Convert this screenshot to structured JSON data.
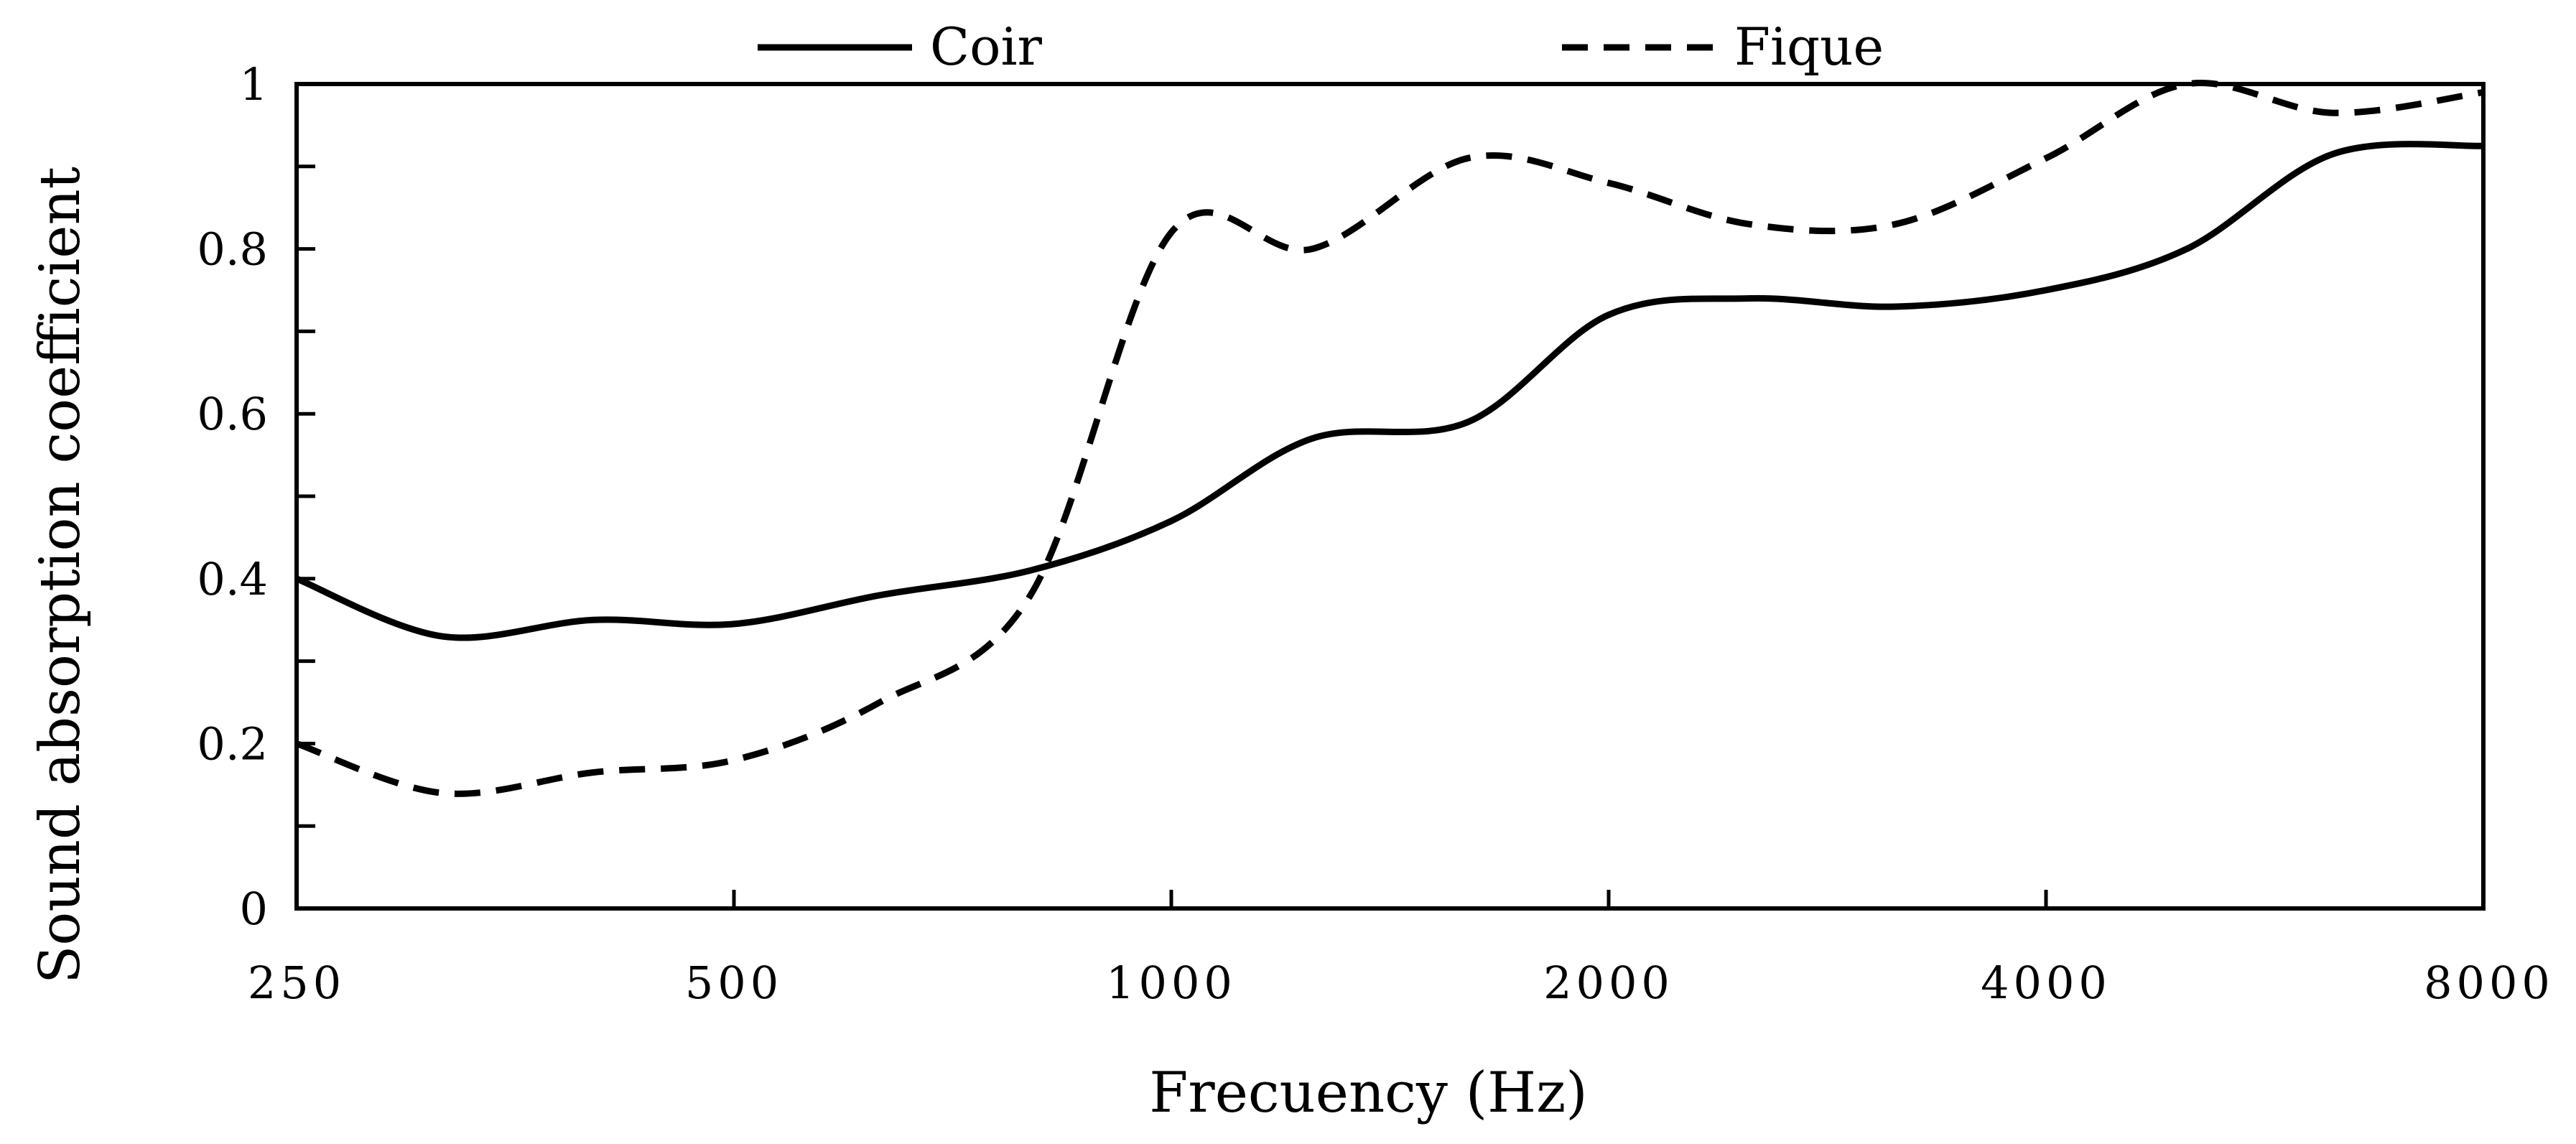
{
  "chart_data": {
    "type": "line",
    "title": "",
    "xlabel": "Frecuency (Hz)",
    "ylabel": "Sound absorption coefficient",
    "x_scale": "log2",
    "xlim": [
      250,
      8000
    ],
    "ylim": [
      0,
      1
    ],
    "x_ticks": [
      250,
      500,
      1000,
      2000,
      4000,
      8000
    ],
    "x_tick_labels": [
      "250",
      "500",
      "1000",
      "2000",
      "4000",
      "8000"
    ],
    "y_ticks": [
      0,
      0.2,
      0.4,
      0.6,
      0.8,
      1
    ],
    "y_tick_labels": [
      "0",
      "0.2",
      "0.4",
      "0.6",
      "0.8",
      "1"
    ],
    "y_minor_step": 0.1,
    "grid": false,
    "legend_position": "top",
    "series": [
      {
        "name": "Coir",
        "style": "solid",
        "x": [
          250,
          315,
          400,
          500,
          630,
          800,
          1000,
          1250,
          1600,
          2000,
          2500,
          3150,
          4000,
          5000,
          6300,
          8000
        ],
        "y": [
          0.4,
          0.33,
          0.35,
          0.345,
          0.38,
          0.41,
          0.47,
          0.57,
          0.59,
          0.72,
          0.74,
          0.73,
          0.75,
          0.8,
          0.915,
          0.925
        ]
      },
      {
        "name": "Fique",
        "style": "dashed",
        "x": [
          250,
          315,
          400,
          500,
          630,
          800,
          1000,
          1250,
          1600,
          2000,
          2500,
          3150,
          4000,
          5000,
          6300,
          8000
        ],
        "y": [
          0.2,
          0.14,
          0.165,
          0.18,
          0.25,
          0.38,
          0.82,
          0.8,
          0.91,
          0.88,
          0.83,
          0.83,
          0.91,
          1.0,
          0.965,
          0.99
        ]
      }
    ]
  }
}
